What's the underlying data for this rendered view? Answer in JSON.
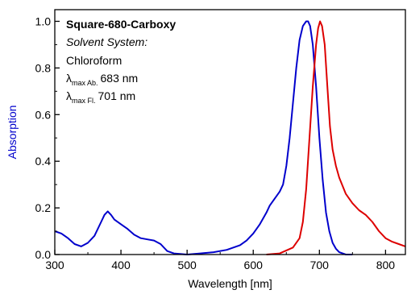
{
  "chart_data": {
    "type": "line",
    "xlabel": "Wavelength [nm]",
    "ylabel": "Absorption",
    "xlim": [
      300,
      830
    ],
    "ylim": [
      0,
      1.05
    ],
    "x_ticks": [
      300,
      400,
      500,
      600,
      700,
      800
    ],
    "y_ticks": [
      0.0,
      0.2,
      0.4,
      0.6,
      0.8,
      1.0
    ],
    "x_tick_labels": [
      "300",
      "400",
      "500",
      "600",
      "700",
      "800"
    ],
    "y_tick_labels": [
      "0.0",
      "0.2",
      "0.4",
      "0.6",
      "0.8",
      "1.0"
    ],
    "grid": false,
    "annotation": {
      "compound": "Square-680-Carboxy",
      "solvent_label": "Solvent System:",
      "solvent": "Chloroform",
      "abs_symbol": "λ",
      "abs_sub": "max Ab.",
      "abs_value": "683 nm",
      "fl_symbol": "λ",
      "fl_sub": "max Fl.",
      "fl_value": "701 nm"
    },
    "series": [
      {
        "color": "#0000cc",
        "x": [
          300,
          310,
          320,
          330,
          340,
          350,
          360,
          370,
          375,
          380,
          385,
          390,
          400,
          410,
          420,
          430,
          440,
          450,
          460,
          470,
          480,
          500,
          520,
          540,
          560,
          580,
          590,
          600,
          610,
          620,
          625,
          630,
          635,
          640,
          645,
          650,
          655,
          660,
          665,
          670,
          675,
          680,
          683,
          686,
          690,
          695,
          700,
          705,
          710,
          715,
          720,
          725,
          730,
          740,
          750
        ],
        "y": [
          0.1,
          0.09,
          0.07,
          0.045,
          0.035,
          0.05,
          0.08,
          0.14,
          0.17,
          0.185,
          0.17,
          0.15,
          0.13,
          0.11,
          0.085,
          0.07,
          0.065,
          0.06,
          0.045,
          0.015,
          0.005,
          0.0,
          0.005,
          0.01,
          0.02,
          0.04,
          0.06,
          0.09,
          0.13,
          0.18,
          0.21,
          0.23,
          0.25,
          0.27,
          0.3,
          0.38,
          0.5,
          0.65,
          0.8,
          0.92,
          0.98,
          1.0,
          1.0,
          0.98,
          0.9,
          0.72,
          0.5,
          0.32,
          0.18,
          0.1,
          0.05,
          0.025,
          0.01,
          0.0,
          0.0
        ]
      },
      {
        "color": "#dd0000",
        "x": [
          620,
          640,
          660,
          670,
          675,
          680,
          685,
          690,
          695,
          698,
          701,
          704,
          708,
          712,
          716,
          720,
          725,
          730,
          740,
          750,
          760,
          770,
          780,
          790,
          800,
          810,
          820,
          830
        ],
        "y": [
          0.0,
          0.005,
          0.03,
          0.07,
          0.14,
          0.28,
          0.5,
          0.72,
          0.9,
          0.97,
          1.0,
          0.98,
          0.9,
          0.72,
          0.55,
          0.45,
          0.38,
          0.33,
          0.26,
          0.22,
          0.19,
          0.17,
          0.14,
          0.1,
          0.07,
          0.055,
          0.045,
          0.035
        ]
      }
    ]
  }
}
